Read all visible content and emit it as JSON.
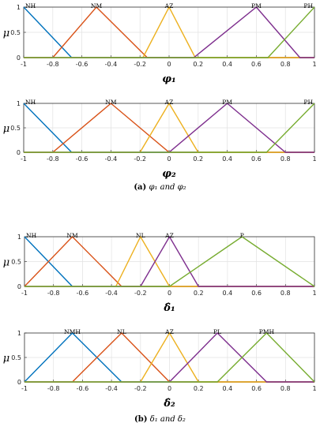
{
  "chart_data": [
    {
      "type": "line",
      "ylabel": "μ",
      "xlabel": "φ₁",
      "xlim": [
        -1,
        1
      ],
      "ylim": [
        0,
        1
      ],
      "xticks": [
        "-1",
        "-0.8",
        "-0.6",
        "-0.4",
        "-0.2",
        "0",
        "0.2",
        "0.4",
        "0.6",
        "0.8",
        "1"
      ],
      "yticks": [
        "0",
        "0.5",
        "1"
      ],
      "grid": true,
      "series": [
        {
          "name": "NH",
          "color": "#0072BD",
          "x": [
            -1,
            -0.67,
            1
          ],
          "y": [
            1,
            0,
            0
          ]
        },
        {
          "name": "NM",
          "color": "#D95319",
          "x": [
            -1,
            -0.8,
            -0.5,
            -0.15,
            1
          ],
          "y": [
            0,
            0,
            1,
            0,
            0
          ]
        },
        {
          "name": "AZ",
          "color": "#EDB120",
          "x": [
            -1,
            -0.18,
            0,
            0.18,
            1
          ],
          "y": [
            0,
            0,
            1,
            0,
            0
          ]
        },
        {
          "name": "PM",
          "color": "#7E2F8E",
          "x": [
            -1,
            0.17,
            0.6,
            0.9,
            1
          ],
          "y": [
            0,
            0,
            1,
            0,
            0
          ]
        },
        {
          "name": "PH",
          "color": "#77AC30",
          "x": [
            -1,
            0.68,
            1
          ],
          "y": [
            0,
            0,
            1
          ]
        }
      ]
    },
    {
      "type": "line",
      "ylabel": "μ",
      "xlabel": "φ₂",
      "xlim": [
        -1,
        1
      ],
      "ylim": [
        0,
        1
      ],
      "xticks": [
        "-1",
        "-0.8",
        "-0.6",
        "-0.4",
        "-0.2",
        "0",
        "0.2",
        "0.4",
        "0.6",
        "0.8",
        "1"
      ],
      "yticks": [
        "0",
        "0.5",
        "1"
      ],
      "grid": true,
      "series": [
        {
          "name": "NH",
          "color": "#0072BD",
          "x": [
            -1,
            -0.67,
            1
          ],
          "y": [
            1,
            0,
            0
          ]
        },
        {
          "name": "NM",
          "color": "#D95319",
          "x": [
            -1,
            -0.8,
            -0.4,
            0,
            1
          ],
          "y": [
            0,
            0,
            1,
            0,
            0
          ]
        },
        {
          "name": "AZ",
          "color": "#EDB120",
          "x": [
            -1,
            -0.2,
            0,
            0.2,
            1
          ],
          "y": [
            0,
            0,
            1,
            0,
            0
          ]
        },
        {
          "name": "PM",
          "color": "#7E2F8E",
          "x": [
            -1,
            0,
            0.4,
            0.8,
            1
          ],
          "y": [
            0,
            0,
            1,
            0,
            0
          ]
        },
        {
          "name": "PH",
          "color": "#77AC30",
          "x": [
            -1,
            0.67,
            1
          ],
          "y": [
            0,
            0,
            1
          ]
        }
      ]
    },
    {
      "type": "line",
      "ylabel": "μ",
      "xlabel": "δ̂₁",
      "xlim": [
        -1,
        1
      ],
      "ylim": [
        0,
        1
      ],
      "xticks": [
        "-1",
        "-0.8",
        "-0.6",
        "-0.4",
        "-0.2",
        "0",
        "0.2",
        "0.4",
        "0.6",
        "0.8",
        "1"
      ],
      "yticks": [
        "0",
        "0.5",
        "1"
      ],
      "grid": true,
      "series": [
        {
          "name": "NH",
          "color": "#0072BD",
          "x": [
            -1,
            -0.67,
            1
          ],
          "y": [
            1,
            0,
            0
          ]
        },
        {
          "name": "NM",
          "color": "#D95319",
          "x": [
            -1,
            -0.67,
            -0.33,
            1
          ],
          "y": [
            0,
            1,
            0,
            0
          ]
        },
        {
          "name": "NL",
          "color": "#EDB120",
          "x": [
            -1,
            -0.37,
            -0.2,
            0,
            1
          ],
          "y": [
            0,
            0,
            1,
            0,
            0
          ]
        },
        {
          "name": "AZ",
          "color": "#7E2F8E",
          "x": [
            -1,
            -0.2,
            0,
            0.2,
            1
          ],
          "y": [
            0,
            0,
            1,
            0,
            0
          ]
        },
        {
          "name": "P",
          "color": "#77AC30",
          "x": [
            -1,
            0,
            0.5,
            1
          ],
          "y": [
            0,
            0,
            1,
            0
          ]
        }
      ]
    },
    {
      "type": "line",
      "ylabel": "μ",
      "xlabel": "δ̂₂",
      "xlim": [
        -1,
        1
      ],
      "ylim": [
        0,
        1
      ],
      "xticks": [
        "-1",
        "-0.8",
        "-0.6",
        "-0.4",
        "-0.2",
        "0",
        "0.2",
        "0.4",
        "0.6",
        "0.8",
        "1"
      ],
      "yticks": [
        "0",
        "0.5",
        "1"
      ],
      "grid": true,
      "series": [
        {
          "name": "NMH",
          "color": "#0072BD",
          "x": [
            -1,
            -0.67,
            -0.33,
            1
          ],
          "y": [
            0,
            1,
            0,
            0
          ]
        },
        {
          "name": "NL",
          "color": "#D95319",
          "x": [
            -1,
            -0.67,
            -0.33,
            0,
            1
          ],
          "y": [
            0,
            0,
            1,
            0,
            0
          ]
        },
        {
          "name": "AZ",
          "color": "#EDB120",
          "x": [
            -1,
            -0.2,
            0,
            0.2,
            1
          ],
          "y": [
            0,
            0,
            1,
            0,
            0
          ]
        },
        {
          "name": "PL",
          "color": "#7E2F8E",
          "x": [
            -1,
            0,
            0.33,
            0.67,
            1
          ],
          "y": [
            0,
            0,
            1,
            0,
            0
          ]
        },
        {
          "name": "PMH",
          "color": "#77AC30",
          "x": [
            -1,
            0.33,
            0.67,
            1
          ],
          "y": [
            0,
            0,
            1,
            0
          ]
        }
      ]
    }
  ],
  "captions": [
    {
      "tag": "(a)",
      "text": "φ₁ and φ₂"
    },
    {
      "tag": "(b)",
      "text": "δ₁ and δ₂"
    }
  ]
}
